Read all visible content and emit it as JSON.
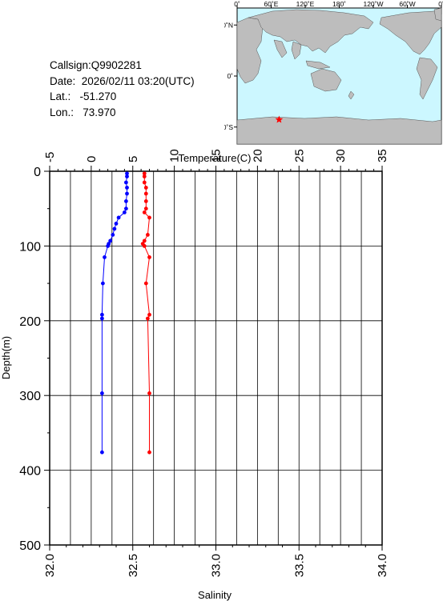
{
  "station": {
    "callsign": "Callsign:Q9902281",
    "date": "Date:  2026/02/11 03:20(UTC)",
    "lat": "Lat.:   -51.270",
    "lon": "Lon.:   73.970"
  },
  "map": {
    "lon_labels": [
      "0˚",
      "60˚E",
      "120˚E",
      "180˚",
      "120˚W",
      "60˚W",
      "0˚"
    ],
    "lat_labels": [
      "60˚N",
      "0˚",
      "60˚S"
    ],
    "marker": {
      "lat": -51.27,
      "lon": 73.97,
      "color": "#ff0000"
    },
    "ocean_color": "#ccf7ff",
    "land_color": "#bdbdbd"
  },
  "chart_data": {
    "type": "line",
    "title": "",
    "x_top_label": "Temperature(C)",
    "x_bottom_label": "Salinity",
    "ylabel": "Depth(m)",
    "temp_range": [
      -5,
      35
    ],
    "temp_ticks": [
      "-5",
      "0",
      "5",
      "10",
      "15",
      "20",
      "25",
      "30",
      "35"
    ],
    "salinity_range": [
      32.0,
      34.0
    ],
    "salinity_ticks": [
      "32.0",
      "32.5",
      "33.0",
      "33.5",
      "34.0"
    ],
    "depth_range": [
      0,
      500
    ],
    "depth_ticks": [
      "0",
      "100",
      "200",
      "300",
      "400",
      "500"
    ],
    "grid": true,
    "series": [
      {
        "name": "Temperature",
        "axis": "top",
        "color": "#0000ff",
        "points": [
          [
            4.3,
            3
          ],
          [
            4.3,
            7
          ],
          [
            4.2,
            15
          ],
          [
            4.3,
            22
          ],
          [
            4.3,
            30
          ],
          [
            4.2,
            40
          ],
          [
            4.2,
            50
          ],
          [
            4.0,
            55
          ],
          [
            3.3,
            62
          ],
          [
            3.0,
            70
          ],
          [
            2.8,
            77
          ],
          [
            2.6,
            85
          ],
          [
            2.3,
            93
          ],
          [
            2.1,
            97
          ],
          [
            2.0,
            100
          ],
          [
            1.6,
            115
          ],
          [
            1.4,
            150
          ],
          [
            1.3,
            192
          ],
          [
            1.3,
            197
          ],
          [
            1.3,
            297
          ],
          [
            1.3,
            376
          ]
        ]
      },
      {
        "name": "Salinity",
        "axis": "bottom",
        "color": "#ff0000",
        "points": [
          [
            32.57,
            3
          ],
          [
            32.57,
            7
          ],
          [
            32.57,
            15
          ],
          [
            32.58,
            22
          ],
          [
            32.58,
            30
          ],
          [
            32.58,
            40
          ],
          [
            32.58,
            50
          ],
          [
            32.57,
            55
          ],
          [
            32.6,
            62
          ],
          [
            32.59,
            85
          ],
          [
            32.57,
            93
          ],
          [
            32.56,
            97
          ],
          [
            32.57,
            100
          ],
          [
            32.6,
            115
          ],
          [
            32.58,
            150
          ],
          [
            32.6,
            192
          ],
          [
            32.59,
            197
          ],
          [
            32.6,
            297
          ],
          [
            32.6,
            376
          ]
        ]
      }
    ]
  }
}
